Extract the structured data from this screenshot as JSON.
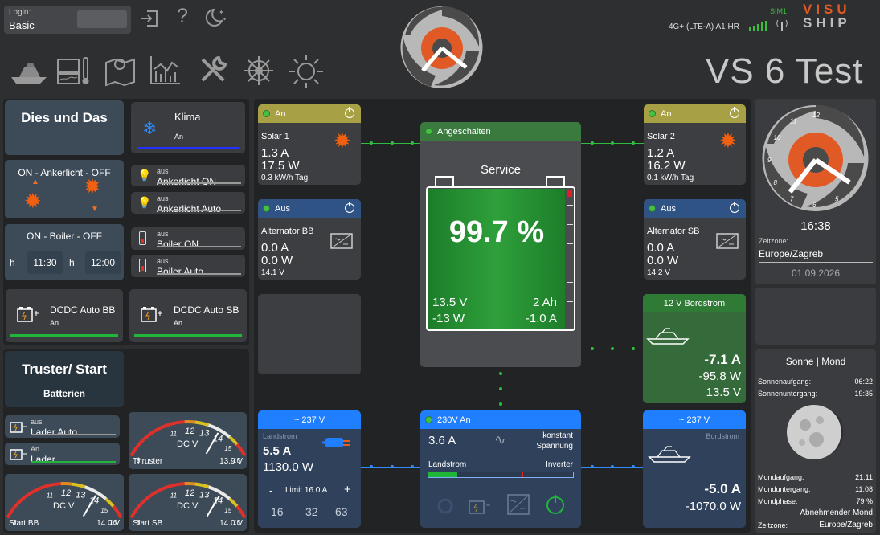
{
  "header": {
    "login_label": "Login:",
    "login_value": "Basic",
    "sim_label": "SIM1",
    "network": "4G+ (LTE-A) A1 HR",
    "brand_top": "VISU",
    "brand_bottom": "SHIP",
    "title": "VS 6 Test",
    "nav_icons": [
      "boat-icon",
      "battery-monitor-icon",
      "map-icon",
      "chart-icon",
      "tools-icon",
      "helm-icon",
      "sun-icon"
    ]
  },
  "left": {
    "dies_title": "Dies und Das",
    "klima": {
      "title": "Klima",
      "status": "An"
    },
    "anker_title": "ON - Ankerlicht - OFF",
    "ankerlicht_on": {
      "status": "aus",
      "label": "Ankerlicht ON"
    },
    "ankerlicht_auto": {
      "status": "aus",
      "label": "Ankerlicht Auto"
    },
    "boiler_title": "ON - Boiler - OFF",
    "boiler_h1": "h",
    "boiler_time1": "11:30",
    "boiler_h2": "h",
    "boiler_time2": "12:00",
    "boiler_on": {
      "status": "aus",
      "label": "Boiler ON"
    },
    "boiler_auto": {
      "status": "aus",
      "label": "Boiler Auto"
    },
    "dcdc_bb": {
      "title": "DCDC Auto BB",
      "status": "An"
    },
    "dcdc_sb": {
      "title": "DCDC Auto SB",
      "status": "An"
    },
    "truster_title": "Truster/ Start",
    "batterien": "Batterien",
    "lader_auto": {
      "status": "aus",
      "label": "Lader Auto"
    },
    "lader": {
      "status": "An",
      "label": "Lader"
    },
    "thruster": {
      "name": "Thruster",
      "value": "13.9 V",
      "unit": "DC V",
      "ticks": [
        "8",
        "11",
        "12",
        "13",
        "14",
        "15",
        "16"
      ]
    },
    "start_bb": {
      "name": "Start BB",
      "value": "14.0 V",
      "unit": "DC V",
      "ticks": [
        "8",
        "11",
        "12",
        "13",
        "14",
        "15",
        "16"
      ]
    },
    "start_sb": {
      "name": "Start SB",
      "value": "14.0 V",
      "unit": "DC V",
      "ticks": [
        "8",
        "11",
        "12",
        "13",
        "14",
        "15",
        "16"
      ]
    }
  },
  "center": {
    "solar1": {
      "state": "An",
      "name": "Solar 1",
      "current": "1.3 A",
      "power": "17.5 W",
      "energy": "0.3 kW/h Tag"
    },
    "solar2": {
      "state": "An",
      "name": "Solar 2",
      "current": "1.2 A",
      "power": "16.2 W",
      "energy": "0.1 kW/h Tag"
    },
    "alt_bb": {
      "state": "Aus",
      "name": "Alternator BB",
      "current": "0.0 A",
      "power": "0.0 W",
      "voltage": "14.1 V"
    },
    "alt_sb": {
      "state": "Aus",
      "name": "Alternator SB",
      "current": "0.0 A",
      "power": "0.0 W",
      "voltage": "14.2 V"
    },
    "service": {
      "state": "Angeschalten",
      "title": "Service",
      "soc": "99.7 %",
      "voltage": "13.5 V",
      "ah": "2 Ah",
      "power": "-13 W",
      "current": "-1.0 A",
      "soc_fraction": 0.997
    },
    "bordstrom12": {
      "title": "12 V Bordstrom",
      "current": "-7.1 A",
      "power": "-95.8 W",
      "voltage": "13.5 V"
    },
    "landstrom": {
      "header": "~ 237 V",
      "label": "Landstrom",
      "current": "5.5 A",
      "power": "1130.0 W",
      "limit_minus": "-",
      "limit": "Limit 16.0 A",
      "limit_plus": "+",
      "presets": [
        "16",
        "32",
        "63"
      ]
    },
    "inverter": {
      "state": "230V An",
      "current": "3.6 A",
      "mode_line1": "konstant",
      "mode_line2": "Spannung",
      "left_label": "Landstrom",
      "right_label": "Inverter",
      "load_fraction": 0.2
    },
    "bordstrom230": {
      "header": "~ 237 V",
      "label": "Bordstrom",
      "current": "-5.0 A",
      "power": "-1070.0 W"
    }
  },
  "right": {
    "clock_numbers": [
      "12",
      "11",
      "10",
      "9",
      "8",
      "7",
      "6",
      "5"
    ],
    "time": "16:38",
    "zone_label": "Zeitzone:",
    "zone_value": "Europe/Zagreb",
    "date": "01.09.2026",
    "sun_moon_title": "Sonne | Mond",
    "sunrise_label": "Sonnenaufgang:",
    "sunrise": "06:22",
    "sunset_label": "Sonnenuntergang:",
    "sunset": "19:35",
    "moonrise_label": "Mondaufgang:",
    "moonrise": "21:11",
    "moonset_label": "Monduntergang:",
    "moonset": "11:08",
    "moonphase_label": "Mondphase:",
    "moonphase": "79 %",
    "phase_name": "Abnehmender Mond",
    "zone2_label": "Zeitzone:",
    "zone2_value": "Europe/Zagreb"
  }
}
